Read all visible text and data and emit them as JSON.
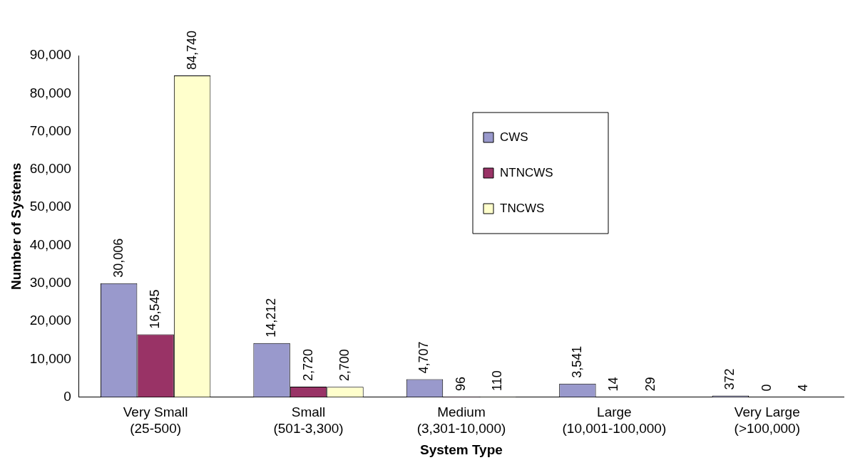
{
  "chart_data": {
    "type": "bar",
    "xlabel": "System Type",
    "ylabel": "Number of Systems",
    "categories": [
      "Very Small\n(25-500)",
      "Small\n(501-3,300)",
      "Medium\n(3,301-10,000)",
      "Large\n(10,001-100,000)",
      "Very Large\n(>100,000)"
    ],
    "series": [
      {
        "name": "CWS",
        "color": "#9999cc",
        "values": [
          30006,
          14212,
          4707,
          3541,
          372
        ],
        "value_labels": [
          "30,006",
          "14,212",
          "4,707",
          "3,541",
          "372"
        ]
      },
      {
        "name": "NTNCWS",
        "color": "#993366",
        "values": [
          16545,
          2720,
          96,
          14,
          0
        ],
        "value_labels": [
          "16,545",
          "2,720",
          "96",
          "14",
          "0"
        ]
      },
      {
        "name": "TNCWS",
        "color": "#ffffcc",
        "values": [
          84740,
          2700,
          110,
          29,
          4
        ],
        "value_labels": [
          "84,740",
          "2,700",
          "110",
          "29",
          "4"
        ]
      }
    ],
    "ylim": [
      0,
      90000
    ],
    "yticks": [
      0,
      {
        "value": 10000,
        "label": "10,000"
      },
      {
        "value": 20000,
        "label": "20,000"
      },
      {
        "value": 30000,
        "label": "30,000"
      },
      {
        "value": 40000,
        "label": "40,000"
      },
      {
        "value": 50000,
        "label": "50,000"
      },
      {
        "value": 60000,
        "label": "60,000"
      },
      {
        "value": 70000,
        "label": "70,000"
      },
      {
        "value": 80000,
        "label": "80,000"
      },
      {
        "value": 90000,
        "label": "90,000"
      }
    ],
    "grid": false,
    "legend": "top right"
  }
}
